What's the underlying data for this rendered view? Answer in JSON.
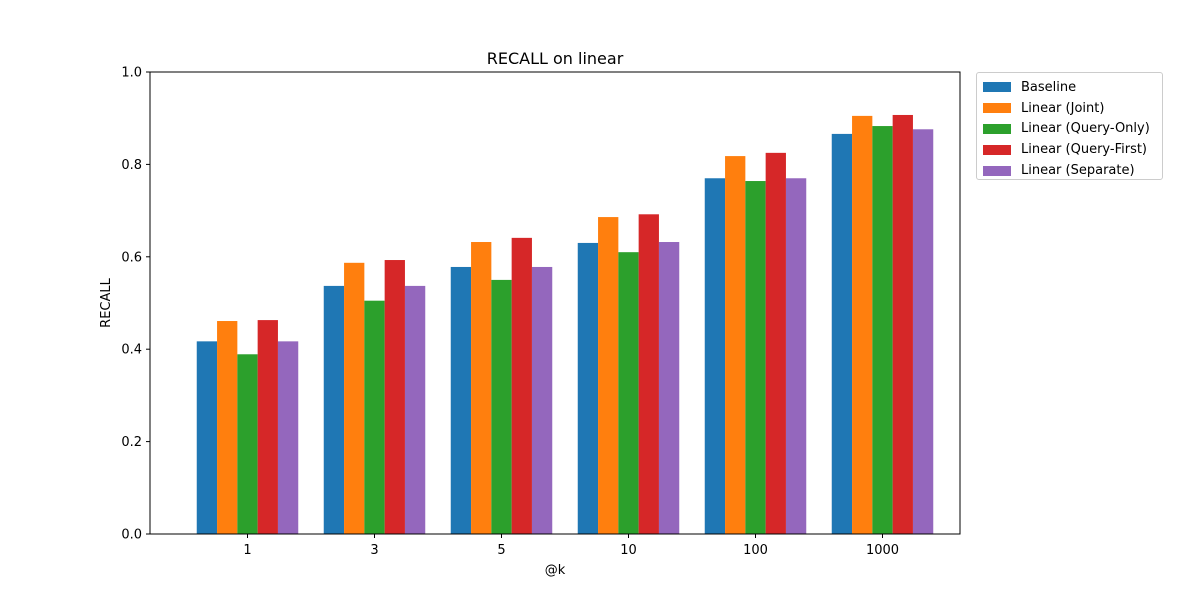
{
  "chart_data": {
    "type": "bar",
    "title": "RECALL on linear",
    "xlabel": "@k",
    "ylabel": "RECALL",
    "categories": [
      "1",
      "3",
      "5",
      "10",
      "100",
      "1000"
    ],
    "ylim": [
      0,
      1.0
    ],
    "yticks": [
      "0.0",
      "0.2",
      "0.4",
      "0.6",
      "0.8",
      "1.0"
    ],
    "grid": false,
    "legend_position": "outside-top-right",
    "series": [
      {
        "name": "Baseline",
        "color": "#1f77b4",
        "values": [
          0.417,
          0.537,
          0.578,
          0.63,
          0.77,
          0.866
        ]
      },
      {
        "name": "Linear (Joint)",
        "color": "#ff7f0e",
        "values": [
          0.461,
          0.587,
          0.632,
          0.686,
          0.818,
          0.905
        ]
      },
      {
        "name": "Linear (Query-Only)",
        "color": "#2ca02c",
        "values": [
          0.389,
          0.505,
          0.55,
          0.61,
          0.764,
          0.883
        ]
      },
      {
        "name": "Linear (Query-First)",
        "color": "#d62728",
        "values": [
          0.463,
          0.593,
          0.641,
          0.692,
          0.825,
          0.907
        ]
      },
      {
        "name": "Linear (Separate)",
        "color": "#9467bd",
        "values": [
          0.417,
          0.537,
          0.578,
          0.632,
          0.77,
          0.876
        ]
      }
    ]
  }
}
